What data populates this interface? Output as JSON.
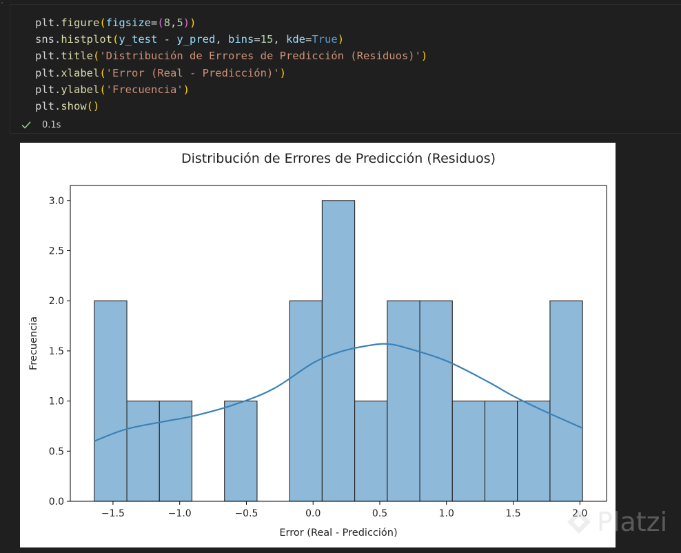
{
  "cell": {
    "code_lines": [
      [
        {
          "t": "plt.",
          "c": "t-op"
        },
        {
          "t": "figure",
          "c": "t-fn"
        },
        {
          "t": "(",
          "c": "t-p1"
        },
        {
          "t": "figsize",
          "c": "t-var"
        },
        {
          "t": "=",
          "c": "t-op"
        },
        {
          "t": "(",
          "c": "t-p2"
        },
        {
          "t": "8",
          "c": "t-num"
        },
        {
          "t": ",",
          "c": "t-op"
        },
        {
          "t": "5",
          "c": "t-num"
        },
        {
          "t": ")",
          "c": "t-p2"
        },
        {
          "t": ")",
          "c": "t-p1"
        }
      ],
      [
        {
          "t": "sns.",
          "c": "t-op"
        },
        {
          "t": "histplot",
          "c": "t-fn"
        },
        {
          "t": "(",
          "c": "t-p1"
        },
        {
          "t": "y_test",
          "c": "t-var"
        },
        {
          "t": " - ",
          "c": "t-op"
        },
        {
          "t": "y_pred",
          "c": "t-var"
        },
        {
          "t": ", ",
          "c": "t-op"
        },
        {
          "t": "bins",
          "c": "t-var"
        },
        {
          "t": "=",
          "c": "t-op"
        },
        {
          "t": "15",
          "c": "t-num"
        },
        {
          "t": ", ",
          "c": "t-op"
        },
        {
          "t": "kde",
          "c": "t-var"
        },
        {
          "t": "=",
          "c": "t-op"
        },
        {
          "t": "True",
          "c": "t-kw"
        },
        {
          "t": ")",
          "c": "t-p1"
        }
      ],
      [
        {
          "t": "plt.",
          "c": "t-op"
        },
        {
          "t": "title",
          "c": "t-fn"
        },
        {
          "t": "(",
          "c": "t-p1"
        },
        {
          "t": "'Distribución de Errores de Predicción (Residuos)'",
          "c": "t-str"
        },
        {
          "t": ")",
          "c": "t-p1"
        }
      ],
      [
        {
          "t": "plt.",
          "c": "t-op"
        },
        {
          "t": "xlabel",
          "c": "t-fn"
        },
        {
          "t": "(",
          "c": "t-p1"
        },
        {
          "t": "'Error (Real - Predicción)'",
          "c": "t-str"
        },
        {
          "t": ")",
          "c": "t-p1"
        }
      ],
      [
        {
          "t": "plt.",
          "c": "t-op"
        },
        {
          "t": "ylabel",
          "c": "t-fn"
        },
        {
          "t": "(",
          "c": "t-p1"
        },
        {
          "t": "'Frecuencia'",
          "c": "t-str"
        },
        {
          "t": ")",
          "c": "t-p1"
        }
      ],
      [
        {
          "t": "plt.",
          "c": "t-op"
        },
        {
          "t": "show",
          "c": "t-fn"
        },
        {
          "t": "()",
          "c": "t-p1"
        }
      ]
    ],
    "status_icon": "check-icon",
    "exec_time": "0.1s"
  },
  "watermark": "Platzi",
  "colors": {
    "bar_fill": "#8fb9d9",
    "bar_edge": "#222222",
    "kde_line": "#3a82b8",
    "success": "#89d185"
  },
  "chart_data": {
    "type": "bar",
    "title": "Distribución de Errores de Predicción (Residuos)",
    "xlabel": "Error (Real - Predicción)",
    "ylabel": "Frecuencia",
    "bins_start": -1.64,
    "bin_width": 0.244,
    "values": [
      2,
      1,
      1,
      0,
      1,
      0,
      2,
      3,
      1,
      2,
      2,
      1,
      1,
      1,
      2
    ],
    "kde": [
      [
        -1.64,
        0.6
      ],
      [
        -1.4,
        0.72
      ],
      [
        -1.1,
        0.8
      ],
      [
        -0.9,
        0.85
      ],
      [
        -0.6,
        0.96
      ],
      [
        -0.3,
        1.12
      ],
      [
        0,
        1.38
      ],
      [
        0.2,
        1.49
      ],
      [
        0.4,
        1.55
      ],
      [
        0.55,
        1.57
      ],
      [
        0.7,
        1.53
      ],
      [
        1.0,
        1.4
      ],
      [
        1.3,
        1.2
      ],
      [
        1.5,
        1.05
      ],
      [
        1.7,
        0.92
      ],
      [
        1.9,
        0.8
      ],
      [
        2.02,
        0.73
      ]
    ],
    "xlim": [
      -1.82,
      2.2
    ],
    "ylim": [
      0,
      3.15
    ],
    "xticks": [
      -1.5,
      -1.0,
      -0.5,
      0.0,
      0.5,
      1.0,
      1.5,
      2.0
    ],
    "xtick_labels": [
      "−1.5",
      "−1.0",
      "−0.5",
      "0.0",
      "0.5",
      "1.0",
      "1.5",
      "2.0"
    ],
    "yticks": [
      0.0,
      0.5,
      1.0,
      1.5,
      2.0,
      2.5,
      3.0
    ],
    "ytick_labels": [
      "0.0",
      "0.5",
      "1.0",
      "1.5",
      "2.0",
      "2.5",
      "3.0"
    ],
    "grid": false,
    "legend": "none"
  }
}
